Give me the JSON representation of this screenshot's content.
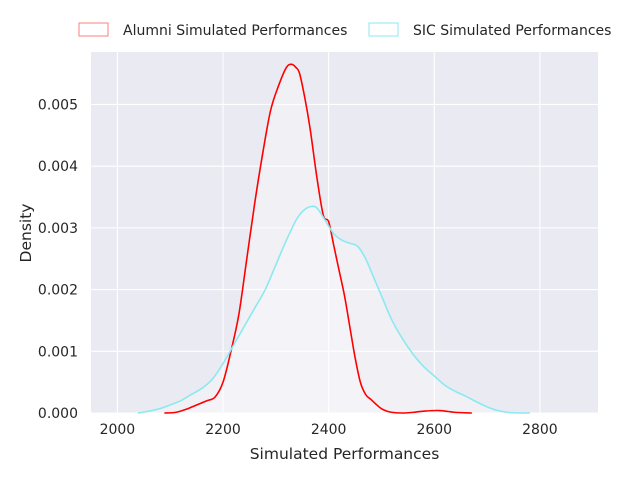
{
  "chart_data": {
    "type": "line",
    "subtype": "kde",
    "title": "",
    "xlabel": "Simulated Performances",
    "ylabel": "Density",
    "xlim": [
      1950,
      2910
    ],
    "ylim": [
      0,
      0.00585
    ],
    "x_ticks": [
      2000,
      2200,
      2400,
      2600,
      2800
    ],
    "x_tick_labels": [
      "2000",
      "2200",
      "2400",
      "2600",
      "2800"
    ],
    "y_ticks": [
      0,
      0.001,
      0.002,
      0.003,
      0.004,
      0.005
    ],
    "y_tick_labels": [
      "0.000",
      "0.001",
      "0.002",
      "0.003",
      "0.004",
      "0.005"
    ],
    "grid": true,
    "legend_position": "top",
    "background_color": "#eaeaf2",
    "series": [
      {
        "name": "Alumni Simulated Performances",
        "color": "#ff0000",
        "legend_color": "#ff7f7f",
        "x": [
          2090,
          2110,
          2130,
          2150,
          2170,
          2185,
          2200,
          2215,
          2230,
          2245,
          2260,
          2275,
          2290,
          2305,
          2320,
          2330,
          2338,
          2345,
          2355,
          2365,
          2378,
          2390,
          2400,
          2410,
          2420,
          2430,
          2440,
          2450,
          2460,
          2470,
          2480,
          2490,
          2500,
          2510,
          2520,
          2540,
          2560,
          2580,
          2610,
          2640,
          2670
        ],
        "y": [
          0.0,
          1e-05,
          6e-05,
          0.00013,
          0.0002,
          0.00026,
          0.0005,
          0.001,
          0.0016,
          0.0025,
          0.0034,
          0.0042,
          0.0049,
          0.0053,
          0.0056,
          0.00565,
          0.0056,
          0.0055,
          0.0051,
          0.0046,
          0.0038,
          0.0032,
          0.0031,
          0.0027,
          0.0023,
          0.0019,
          0.0014,
          0.0009,
          0.0005,
          0.0003,
          0.00022,
          0.00014,
          7e-05,
          3e-05,
          1e-05,
          0.0,
          1e-05,
          3e-05,
          4e-05,
          1e-05,
          0.0
        ]
      },
      {
        "name": "SIC Simulated Performances",
        "color": "#8be9f0",
        "legend_color": "#8be9f0",
        "x": [
          2040,
          2060,
          2080,
          2100,
          2120,
          2140,
          2160,
          2180,
          2200,
          2220,
          2240,
          2260,
          2280,
          2300,
          2320,
          2340,
          2355,
          2370,
          2380,
          2395,
          2410,
          2425,
          2440,
          2455,
          2470,
          2485,
          2500,
          2520,
          2540,
          2560,
          2580,
          2600,
          2620,
          2640,
          2660,
          2680,
          2700,
          2720,
          2740,
          2760,
          2780
        ],
        "y": [
          0.0,
          3e-05,
          7e-05,
          0.00013,
          0.0002,
          0.0003,
          0.0004,
          0.00055,
          0.0008,
          0.0011,
          0.0014,
          0.0017,
          0.002,
          0.0024,
          0.0028,
          0.00315,
          0.0033,
          0.00335,
          0.0033,
          0.0031,
          0.0029,
          0.0028,
          0.00275,
          0.0027,
          0.0025,
          0.0022,
          0.0019,
          0.0015,
          0.0012,
          0.00095,
          0.00075,
          0.0006,
          0.00045,
          0.00035,
          0.00027,
          0.00018,
          0.0001,
          4e-05,
          1e-05,
          0.0,
          0.0
        ]
      }
    ]
  }
}
